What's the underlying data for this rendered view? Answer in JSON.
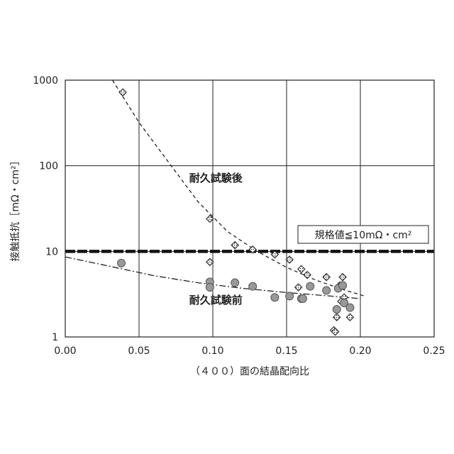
{
  "chart_data": {
    "type": "scatter",
    "title": "",
    "xlabel": "（４００）面の結晶配向比",
    "ylabel": "接触抵抗［mΩ・cm²］",
    "xlim": [
      0,
      0.25
    ],
    "ylim": [
      1,
      1000
    ],
    "yscale": "log",
    "grid": true,
    "x_ticks": [
      0,
      0.05,
      0.1,
      0.15,
      0.2,
      0.25
    ],
    "x_tick_labels": [
      "0.00",
      "0.05",
      "0.10",
      "0.15",
      "0.20",
      "0.25"
    ],
    "y_ticks": [
      1,
      10,
      100,
      1000
    ],
    "y_tick_labels": [
      "1",
      "10",
      "100",
      "1000"
    ],
    "series": [
      {
        "name": "耐久試験後",
        "marker": "diamond-hatched",
        "color": "#444444",
        "points": [
          [
            0.039,
            720
          ],
          [
            0.098,
            24
          ],
          [
            0.098,
            7.5
          ],
          [
            0.115,
            11.8
          ],
          [
            0.127,
            10.5
          ],
          [
            0.142,
            9.2
          ],
          [
            0.152,
            8.0
          ],
          [
            0.158,
            3.8
          ],
          [
            0.16,
            6.2
          ],
          [
            0.164,
            5.3
          ],
          [
            0.177,
            5.0
          ],
          [
            0.182,
            1.2
          ],
          [
            0.183,
            1.15
          ],
          [
            0.184,
            1.7
          ],
          [
            0.185,
            3.8
          ],
          [
            0.186,
            4.0
          ],
          [
            0.187,
            2.6
          ],
          [
            0.188,
            5.0
          ],
          [
            0.189,
            2.9
          ],
          [
            0.193,
            1.7
          ]
        ]
      },
      {
        "name": "耐久試験前",
        "marker": "circle",
        "color": "#999999",
        "points": [
          [
            0.038,
            7.3
          ],
          [
            0.098,
            4.4
          ],
          [
            0.098,
            3.8
          ],
          [
            0.115,
            4.3
          ],
          [
            0.127,
            3.9
          ],
          [
            0.142,
            2.9
          ],
          [
            0.152,
            3.0
          ],
          [
            0.16,
            2.8
          ],
          [
            0.161,
            2.8
          ],
          [
            0.166,
            3.9
          ],
          [
            0.177,
            3.5
          ],
          [
            0.184,
            2.1
          ],
          [
            0.185,
            3.7
          ],
          [
            0.188,
            4.0
          ],
          [
            0.189,
            2.5
          ],
          [
            0.193,
            2.2
          ]
        ]
      }
    ],
    "trendlines": [
      {
        "series": "耐久試験後",
        "style": "dashed",
        "points": [
          [
            0.032,
            1000
          ],
          [
            0.05,
            320
          ],
          [
            0.07,
            110
          ],
          [
            0.09,
            38
          ],
          [
            0.11,
            17
          ],
          [
            0.13,
            10
          ],
          [
            0.15,
            6.5
          ],
          [
            0.17,
            4.6
          ],
          [
            0.19,
            3.5
          ],
          [
            0.203,
            3.0
          ]
        ]
      },
      {
        "series": "耐久試験前",
        "style": "dash-dot",
        "points": [
          [
            0.0,
            8.6
          ],
          [
            0.03,
            6.7
          ],
          [
            0.06,
            5.2
          ],
          [
            0.09,
            4.3
          ],
          [
            0.12,
            3.7
          ],
          [
            0.15,
            3.3
          ],
          [
            0.18,
            3.0
          ],
          [
            0.2,
            2.8
          ]
        ]
      }
    ],
    "reference_line": {
      "y": 10,
      "label": "規格値≦10mΩ・cm²",
      "style": "thick-dashed"
    },
    "annotations": [
      {
        "text": "耐久試験後",
        "x": 0.084,
        "y": 65
      },
      {
        "text": "耐久試験前",
        "x": 0.084,
        "y": 2.45
      }
    ]
  }
}
